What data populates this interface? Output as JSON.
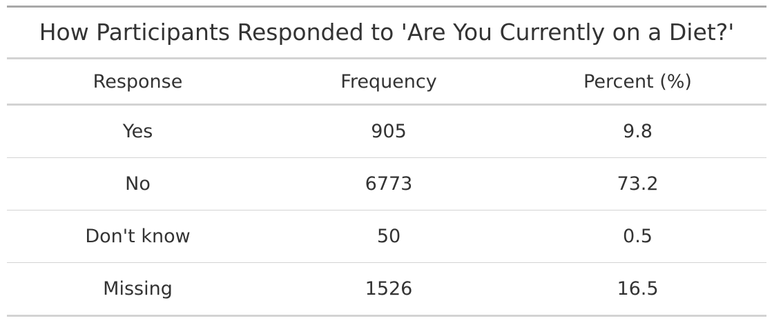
{
  "table": {
    "title": "How Participants Responded to 'Are You Currently on a Diet?'",
    "columns": [
      "Response",
      "Frequency",
      "Percent (%)"
    ],
    "rows": [
      [
        "Yes",
        "905",
        "9.8"
      ],
      [
        "No",
        "6773",
        "73.2"
      ],
      [
        "Don't know",
        "50",
        "0.5"
      ],
      [
        "Missing",
        "1526",
        "16.5"
      ]
    ]
  },
  "colors": {
    "text": "#333333",
    "rule_heavy": "#a8a8a8",
    "rule_light": "#d3d3d3"
  }
}
